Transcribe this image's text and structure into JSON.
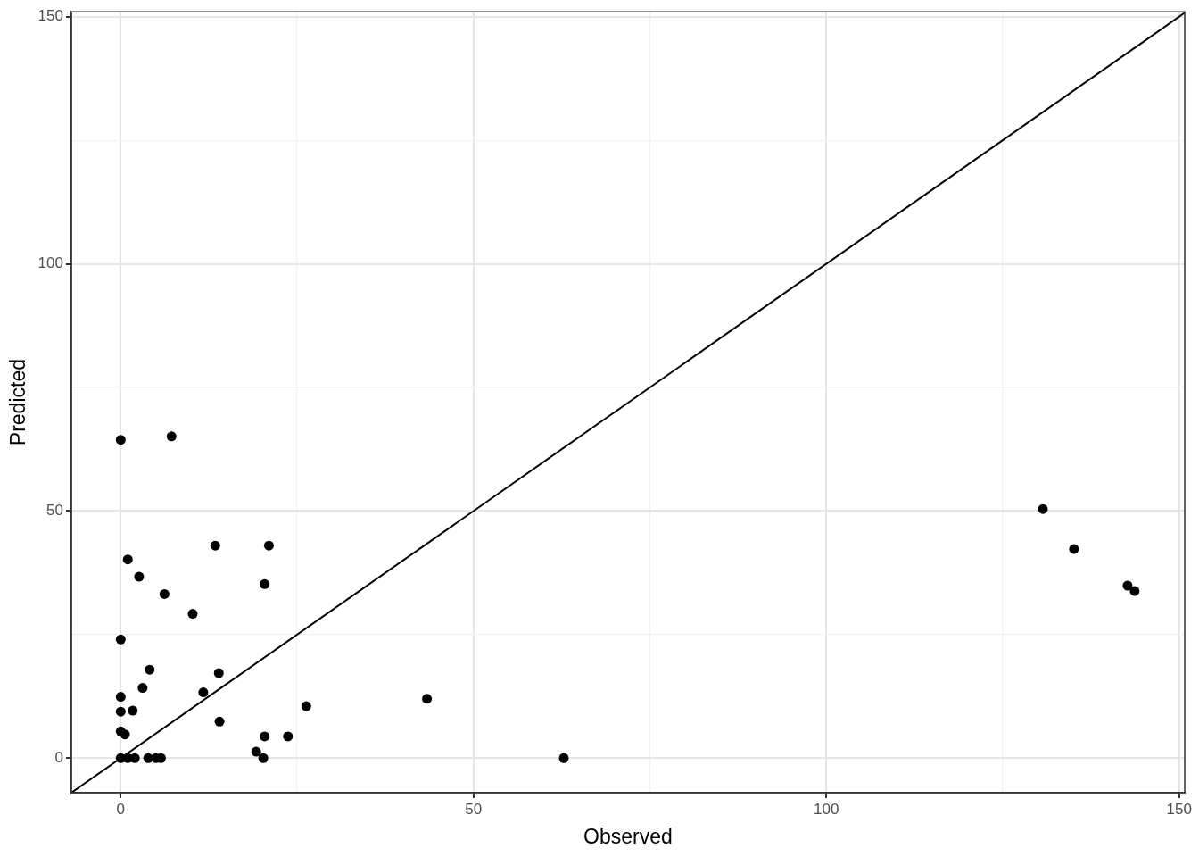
{
  "chart_data": {
    "type": "scatter",
    "xlabel": "Observed",
    "ylabel": "Predicted",
    "xlim": [
      -7,
      150.8
    ],
    "ylim": [
      -7,
      151
    ],
    "xticks": [
      0,
      {
        "value": 25,
        "label": null
      },
      50,
      {
        "value": 75,
        "label": null
      },
      100,
      {
        "value": 125,
        "label": null
      },
      150
    ],
    "yticks": [
      0,
      {
        "value": 25,
        "label": null
      },
      50,
      {
        "value": 75,
        "label": null
      },
      100,
      {
        "value": 125,
        "label": null
      },
      150
    ],
    "grid": true,
    "legend": false,
    "marker": "circle",
    "series": [
      {
        "color": "#000000",
        "x": [
          0,
          7.2,
          1.0,
          2.6,
          6.2,
          10.2,
          13.4,
          21.0,
          20.4,
          0,
          4.1,
          13.9,
          3.1,
          11.7,
          0,
          0,
          1.7,
          26.3,
          43.4,
          0,
          0.6,
          14.0,
          20.4,
          23.7,
          19.2,
          20.2,
          62.8,
          0,
          1,
          2,
          3.9,
          5.0,
          5.7,
          130.7,
          135.1,
          142.7,
          143.7
        ],
        "values": [
          64.4,
          65.1,
          40.2,
          36.7,
          33.2,
          29.2,
          43.0,
          43.0,
          35.2,
          24.0,
          17.9,
          17.2,
          14.2,
          13.3,
          12.4,
          9.4,
          9.6,
          10.5,
          12.0,
          5.4,
          4.8,
          7.4,
          4.4,
          4.4,
          1.3,
          0,
          0,
          0,
          0,
          0,
          0,
          0,
          0,
          50.4,
          42.3,
          34.9,
          33.8
        ]
      },
      {
        "type": "line",
        "color": "#000000",
        "x": [
          -7,
          150.8
        ],
        "values": [
          -7,
          150.8
        ],
        "marker": "none"
      }
    ]
  }
}
